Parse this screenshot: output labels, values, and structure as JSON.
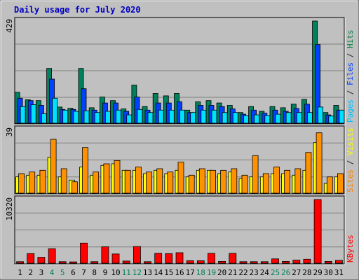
{
  "chart_data": {
    "type": "bar",
    "title": "Daily usage for July 2020",
    "categories": [
      "1",
      "2",
      "3",
      "4",
      "5",
      "6",
      "7",
      "8",
      "9",
      "10",
      "11",
      "12",
      "13",
      "14",
      "15",
      "16",
      "17",
      "18",
      "19",
      "20",
      "21",
      "22",
      "23",
      "24",
      "25",
      "26",
      "27",
      "28",
      "29",
      "30",
      "31"
    ],
    "weekend_days": [
      "4",
      "5",
      "11",
      "12",
      "18",
      "19",
      "25",
      "26"
    ],
    "panels": [
      {
        "name": "hits-files-pages",
        "ymax_label": "429",
        "ymax": 429,
        "axis_labels": [
          {
            "text": "Pages",
            "color": "#00c0ff"
          },
          {
            "text": " / ",
            "color": "#202020"
          },
          {
            "text": "Files",
            "color": "#0040ff"
          },
          {
            "text": " / ",
            "color": "#202020"
          },
          {
            "text": "Hits",
            "color": "#008040"
          }
        ],
        "series": [
          {
            "name": "Hits",
            "color": "#00805c",
            "values": [
              130,
              98,
              95,
              230,
              68,
              63,
              230,
              65,
              110,
              95,
              60,
              160,
              70,
              125,
              115,
              125,
              55,
              90,
              95,
              85,
              75,
              45,
              70,
              50,
              70,
              65,
              80,
              100,
              429,
              45,
              75
            ]
          },
          {
            "name": "Files",
            "color": "#0040ff",
            "values": [
              105,
              95,
              75,
              185,
              58,
              58,
              145,
              55,
              85,
              85,
              50,
              110,
              55,
              85,
              85,
              90,
              45,
              75,
              75,
              70,
              60,
              38,
              55,
              42,
              55,
              50,
              62,
              80,
              330,
              35,
              55
            ]
          },
          {
            "name": "Pages",
            "color": "#00e0ff",
            "values": [
              70,
              78,
              40,
              105,
              55,
              50,
              52,
              45,
              50,
              55,
              35,
              58,
              45,
              55,
              55,
              55,
              45,
              55,
              55,
              45,
              45,
              32,
              35,
              32,
              38,
              45,
              45,
              45,
              68,
              30,
              55
            ]
          }
        ]
      },
      {
        "name": "visits-sites",
        "ymax_label": "39",
        "ymax": 39,
        "axis_labels": [
          {
            "text": "Sites",
            "color": "#ff8000"
          },
          {
            "text": " / ",
            "color": "#202020"
          },
          {
            "text": "Visits",
            "color": "#ffff00"
          }
        ],
        "series": [
          {
            "name": "Visits",
            "color": "#ffff00",
            "values": [
              10,
              11,
              11,
              22,
              10,
              8,
              16,
              11,
              17,
              18,
              14,
              14,
              12,
              14,
              12,
              14,
              10,
              14,
              14,
              12,
              13,
              9,
              10,
              10,
              12,
              12,
              11,
              14,
              31,
              6,
              10
            ]
          },
          {
            "name": "Sites",
            "color": "#ff9000",
            "values": [
              12,
              13,
              14,
              33,
              15,
              7,
              28,
              13,
              18,
              20,
              14,
              16,
              13,
              15,
              13,
              19,
              11,
              15,
              14,
              14,
              15,
              11,
              23,
              12,
              16,
              14,
              15,
              25,
              37,
              10,
              12
            ]
          }
        ]
      },
      {
        "name": "kbytes",
        "ymax_label": "10320",
        "ymax": 10320,
        "axis_labels": [
          {
            "text": "KBytes",
            "color": "#ff0000"
          }
        ],
        "series": [
          {
            "name": "KBytes",
            "color": "#ff0000",
            "values": [
              250,
              1550,
              950,
              2350,
              250,
              220,
              3250,
              250,
              2650,
              1500,
              350,
              2700,
              250,
              1600,
              1550,
              1700,
              400,
              400,
              1600,
              300,
              1600,
              250,
              250,
              250,
              700,
              300,
              500,
              650,
              10320,
              300,
              450
            ]
          }
        ]
      }
    ],
    "grid": true,
    "legend": "right-side vertical"
  }
}
